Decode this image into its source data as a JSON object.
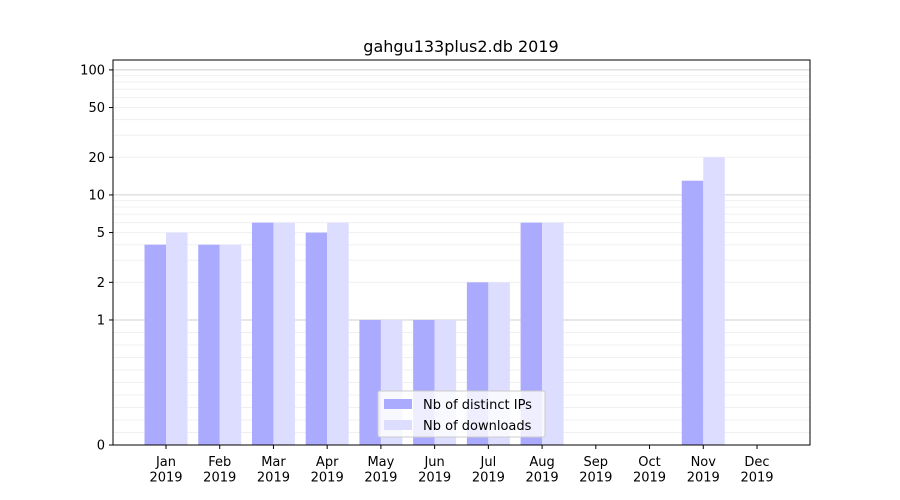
{
  "chart_data": {
    "type": "bar",
    "title": "gahgu133plus2.db 2019",
    "xlabel": "",
    "ylabel": "",
    "yscale": "symlog",
    "ylim": [
      0,
      120
    ],
    "yticks": [
      0,
      1,
      2,
      5,
      10,
      20,
      50,
      100
    ],
    "ytick_labels": [
      "0",
      "1",
      "2",
      "5",
      "10",
      "20",
      "50",
      "100"
    ],
    "grid": true,
    "legend_position": "bottom-center",
    "categories": [
      "Jan\n2019",
      "Feb\n2019",
      "Mar\n2019",
      "Apr\n2019",
      "May\n2019",
      "Jun\n2019",
      "Jul\n2019",
      "Aug\n2019",
      "Sep\n2019",
      "Oct\n2019",
      "Nov\n2019",
      "Dec\n2019"
    ],
    "category_lines": [
      [
        "Jan",
        "2019"
      ],
      [
        "Feb",
        "2019"
      ],
      [
        "Mar",
        "2019"
      ],
      [
        "Apr",
        "2019"
      ],
      [
        "May",
        "2019"
      ],
      [
        "Jun",
        "2019"
      ],
      [
        "Jul",
        "2019"
      ],
      [
        "Aug",
        "2019"
      ],
      [
        "Sep",
        "2019"
      ],
      [
        "Oct",
        "2019"
      ],
      [
        "Nov",
        "2019"
      ],
      [
        "Dec",
        "2019"
      ]
    ],
    "series": [
      {
        "name": "Nb of distinct IPs",
        "color": "#aaaaff",
        "values": [
          4,
          4,
          6,
          5,
          1,
          1,
          2,
          6,
          0,
          0,
          13,
          0
        ]
      },
      {
        "name": "Nb of downloads",
        "color": "#ddddff",
        "values": [
          5,
          4,
          6,
          6,
          1,
          1,
          2,
          6,
          0,
          0,
          20,
          0
        ]
      }
    ]
  }
}
